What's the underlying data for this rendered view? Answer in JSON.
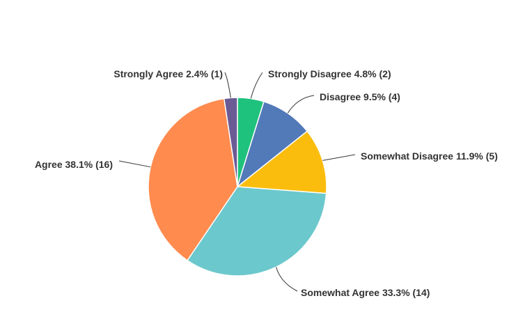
{
  "chart_data": {
    "type": "pie",
    "start_angle_deg": 0,
    "direction": "clockwise",
    "slices": [
      {
        "label": "Strongly Disagree 4.8% (2)",
        "category": "Strongly Disagree",
        "percent": 4.8,
        "count": 2,
        "color": "#1fc27d"
      },
      {
        "label": "Disagree 9.5% (4)",
        "category": "Disagree",
        "percent": 9.5,
        "count": 4,
        "color": "#5279b8"
      },
      {
        "label": "Somewhat Disagree 11.9% (5)",
        "category": "Somewhat Disagree",
        "percent": 11.9,
        "count": 5,
        "color": "#fbbd0d"
      },
      {
        "label": "Somewhat Agree 33.3% (14)",
        "category": "Somewhat Agree",
        "percent": 33.3,
        "count": 14,
        "color": "#6bc8cc"
      },
      {
        "label": "Agree 38.1% (16)",
        "category": "Agree",
        "percent": 38.1,
        "count": 16,
        "color": "#ff8b4f"
      },
      {
        "label": "Strongly Agree 2.4% (1)",
        "category": "Strongly Agree",
        "percent": 2.4,
        "count": 1,
        "color": "#6b5b95"
      }
    ]
  }
}
